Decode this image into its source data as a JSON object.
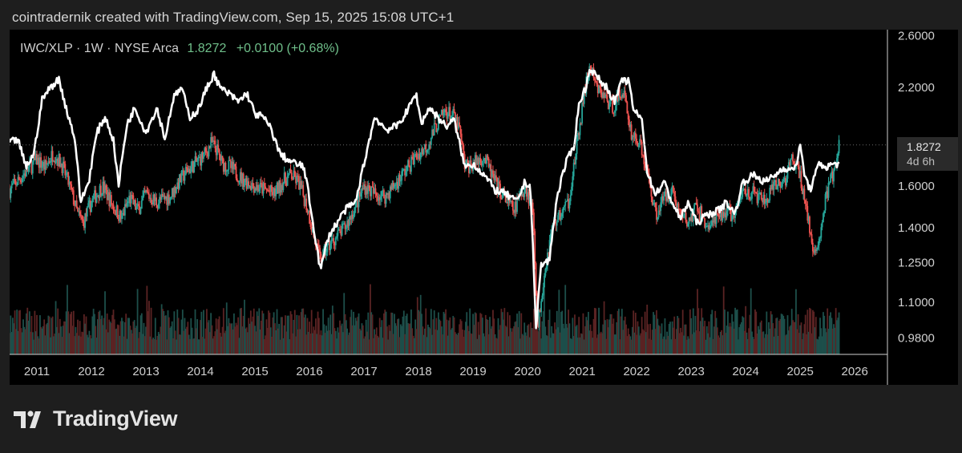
{
  "attribution": "cointradernik created with TradingView.com, Sep 15, 2025 15:08 UTC+1",
  "legend": {
    "symbol": "IWC/XLP · 1W · NYSE Arca",
    "last": "1.8272",
    "change": "+0.0100 (+0.68%)"
  },
  "price_tag": {
    "price": "1.8272",
    "countdown": "4d 6h"
  },
  "brand": {
    "name": "TradingView",
    "icon": "tradingview-logo-icon"
  },
  "colors": {
    "up": "#26a69a",
    "down": "#ef5350",
    "overlay": "#ffffff",
    "volume_up": "#1d4f4a",
    "volume_down": "#5a2323",
    "axis_text": "#d0d0d0",
    "background": "#000000"
  },
  "chart_data": {
    "type": "candlestick",
    "title": "",
    "interval": "1W",
    "y_scale": "log",
    "ylim": [
      0.93,
      2.65
    ],
    "xlim": [
      2010.5,
      2026.6
    ],
    "y_ticks": [
      "2.6000",
      "2.2000",
      "1.6000",
      "1.4000",
      "1.2500",
      "1.1000",
      "0.9800"
    ],
    "x_ticks": [
      "2011",
      "2012",
      "2013",
      "2014",
      "2015",
      "2016",
      "2017",
      "2018",
      "2019",
      "2020",
      "2021",
      "2022",
      "2023",
      "2024",
      "2025",
      "2026"
    ],
    "last_price": 1.8272,
    "series": [
      {
        "type": "candlestick",
        "points": [
          [
            2010.5,
            1.58
          ],
          [
            2010.75,
            1.66
          ],
          [
            2011.0,
            1.74
          ],
          [
            2011.15,
            1.7
          ],
          [
            2011.3,
            1.78
          ],
          [
            2011.45,
            1.72
          ],
          [
            2011.6,
            1.6
          ],
          [
            2011.75,
            1.46
          ],
          [
            2011.85,
            1.42
          ],
          [
            2012.0,
            1.52
          ],
          [
            2012.2,
            1.6
          ],
          [
            2012.4,
            1.5
          ],
          [
            2012.55,
            1.44
          ],
          [
            2012.7,
            1.54
          ],
          [
            2012.85,
            1.48
          ],
          [
            2013.0,
            1.56
          ],
          [
            2013.2,
            1.52
          ],
          [
            2013.45,
            1.55
          ],
          [
            2013.6,
            1.62
          ],
          [
            2013.75,
            1.68
          ],
          [
            2013.9,
            1.72
          ],
          [
            2014.1,
            1.78
          ],
          [
            2014.2,
            1.84
          ],
          [
            2014.3,
            1.8
          ],
          [
            2014.4,
            1.72
          ],
          [
            2014.55,
            1.7
          ],
          [
            2014.75,
            1.64
          ],
          [
            2015.0,
            1.6
          ],
          [
            2015.2,
            1.58
          ],
          [
            2015.35,
            1.56
          ],
          [
            2015.5,
            1.62
          ],
          [
            2015.65,
            1.66
          ],
          [
            2015.8,
            1.62
          ],
          [
            2015.95,
            1.5
          ],
          [
            2016.1,
            1.34
          ],
          [
            2016.2,
            1.26
          ],
          [
            2016.35,
            1.32
          ],
          [
            2016.5,
            1.36
          ],
          [
            2016.65,
            1.4
          ],
          [
            2016.85,
            1.5
          ],
          [
            2017.0,
            1.6
          ],
          [
            2017.2,
            1.56
          ],
          [
            2017.4,
            1.55
          ],
          [
            2017.6,
            1.62
          ],
          [
            2017.8,
            1.7
          ],
          [
            2017.95,
            1.76
          ],
          [
            2018.15,
            1.82
          ],
          [
            2018.35,
            1.96
          ],
          [
            2018.5,
            2.04
          ],
          [
            2018.65,
            2.0
          ],
          [
            2018.75,
            1.92
          ],
          [
            2018.85,
            1.7
          ],
          [
            2019.0,
            1.72
          ],
          [
            2019.2,
            1.76
          ],
          [
            2019.4,
            1.62
          ],
          [
            2019.55,
            1.55
          ],
          [
            2019.75,
            1.48
          ],
          [
            2019.95,
            1.6
          ],
          [
            2020.1,
            1.48
          ],
          [
            2020.18,
            1.0
          ],
          [
            2020.3,
            1.2
          ],
          [
            2020.45,
            1.4
          ],
          [
            2020.6,
            1.46
          ],
          [
            2020.75,
            1.52
          ],
          [
            2020.9,
            1.8
          ],
          [
            2021.05,
            2.18
          ],
          [
            2021.15,
            2.36
          ],
          [
            2021.25,
            2.2
          ],
          [
            2021.4,
            2.14
          ],
          [
            2021.55,
            2.06
          ],
          [
            2021.75,
            2.18
          ],
          [
            2021.9,
            1.9
          ],
          [
            2022.05,
            1.84
          ],
          [
            2022.2,
            1.66
          ],
          [
            2022.35,
            1.46
          ],
          [
            2022.5,
            1.54
          ],
          [
            2022.65,
            1.58
          ],
          [
            2022.8,
            1.46
          ],
          [
            2022.95,
            1.42
          ],
          [
            2023.1,
            1.5
          ],
          [
            2023.3,
            1.4
          ],
          [
            2023.5,
            1.44
          ],
          [
            2023.65,
            1.48
          ],
          [
            2023.8,
            1.45
          ],
          [
            2023.95,
            1.58
          ],
          [
            2024.15,
            1.56
          ],
          [
            2024.35,
            1.52
          ],
          [
            2024.55,
            1.6
          ],
          [
            2024.7,
            1.62
          ],
          [
            2024.85,
            1.74
          ],
          [
            2024.95,
            1.7
          ],
          [
            2025.1,
            1.52
          ],
          [
            2025.25,
            1.26
          ],
          [
            2025.35,
            1.36
          ],
          [
            2025.5,
            1.58
          ],
          [
            2025.65,
            1.7
          ],
          [
            2025.72,
            1.8272
          ]
        ]
      },
      {
        "type": "line",
        "points": [
          [
            2010.5,
            1.84
          ],
          [
            2010.65,
            1.86
          ],
          [
            2010.8,
            1.7
          ],
          [
            2010.95,
            1.78
          ],
          [
            2011.1,
            2.12
          ],
          [
            2011.25,
            2.2
          ],
          [
            2011.4,
            2.26
          ],
          [
            2011.55,
            2.04
          ],
          [
            2011.7,
            1.86
          ],
          [
            2011.8,
            1.52
          ],
          [
            2011.95,
            1.62
          ],
          [
            2012.1,
            1.9
          ],
          [
            2012.25,
            2.0
          ],
          [
            2012.4,
            1.86
          ],
          [
            2012.5,
            1.6
          ],
          [
            2012.65,
            1.95
          ],
          [
            2012.8,
            2.06
          ],
          [
            2013.0,
            1.9
          ],
          [
            2013.2,
            2.06
          ],
          [
            2013.35,
            1.86
          ],
          [
            2013.5,
            2.12
          ],
          [
            2013.65,
            2.2
          ],
          [
            2013.8,
            2.0
          ],
          [
            2013.95,
            2.04
          ],
          [
            2014.1,
            2.18
          ],
          [
            2014.25,
            2.3
          ],
          [
            2014.35,
            2.2
          ],
          [
            2014.5,
            2.16
          ],
          [
            2014.7,
            2.1
          ],
          [
            2014.85,
            2.16
          ],
          [
            2015.0,
            2.02
          ],
          [
            2015.15,
            2.0
          ],
          [
            2015.3,
            1.92
          ],
          [
            2015.45,
            1.78
          ],
          [
            2015.6,
            1.74
          ],
          [
            2015.75,
            1.72
          ],
          [
            2015.9,
            1.7
          ],
          [
            2016.05,
            1.44
          ],
          [
            2016.2,
            1.22
          ],
          [
            2016.35,
            1.36
          ],
          [
            2016.5,
            1.42
          ],
          [
            2016.65,
            1.48
          ],
          [
            2016.85,
            1.52
          ],
          [
            2017.0,
            1.72
          ],
          [
            2017.2,
            2.0
          ],
          [
            2017.4,
            1.92
          ],
          [
            2017.6,
            1.94
          ],
          [
            2017.8,
            2.04
          ],
          [
            2017.95,
            2.16
          ],
          [
            2018.05,
            1.96
          ],
          [
            2018.2,
            2.06
          ],
          [
            2018.35,
            2.0
          ],
          [
            2018.5,
            1.94
          ],
          [
            2018.65,
            1.98
          ],
          [
            2018.85,
            1.7
          ],
          [
            2019.0,
            1.72
          ],
          [
            2019.2,
            1.66
          ],
          [
            2019.4,
            1.58
          ],
          [
            2019.6,
            1.56
          ],
          [
            2019.8,
            1.52
          ],
          [
            2019.95,
            1.62
          ],
          [
            2020.05,
            1.6
          ],
          [
            2020.15,
            1.0
          ],
          [
            2020.25,
            1.24
          ],
          [
            2020.4,
            1.26
          ],
          [
            2020.55,
            1.56
          ],
          [
            2020.7,
            1.72
          ],
          [
            2020.85,
            1.82
          ],
          [
            2020.95,
            2.1
          ],
          [
            2021.05,
            2.18
          ],
          [
            2021.15,
            2.34
          ],
          [
            2021.3,
            2.26
          ],
          [
            2021.45,
            2.2
          ],
          [
            2021.6,
            2.1
          ],
          [
            2021.75,
            2.26
          ],
          [
            2021.85,
            2.24
          ],
          [
            2021.95,
            2.04
          ],
          [
            2022.1,
            1.98
          ],
          [
            2022.2,
            1.66
          ],
          [
            2022.35,
            1.56
          ],
          [
            2022.5,
            1.62
          ],
          [
            2022.65,
            1.52
          ],
          [
            2022.8,
            1.44
          ],
          [
            2022.95,
            1.52
          ],
          [
            2023.1,
            1.42
          ],
          [
            2023.3,
            1.46
          ],
          [
            2023.5,
            1.48
          ],
          [
            2023.65,
            1.52
          ],
          [
            2023.8,
            1.46
          ],
          [
            2023.95,
            1.62
          ],
          [
            2024.15,
            1.66
          ],
          [
            2024.35,
            1.62
          ],
          [
            2024.55,
            1.66
          ],
          [
            2024.7,
            1.7
          ],
          [
            2024.85,
            1.68
          ],
          [
            2024.95,
            1.74
          ],
          [
            2025.0,
            1.82
          ],
          [
            2025.08,
            1.66
          ],
          [
            2025.18,
            1.58
          ],
          [
            2025.35,
            1.72
          ],
          [
            2025.5,
            1.7
          ],
          [
            2025.6,
            1.72
          ],
          [
            2025.72,
            1.72
          ]
        ]
      }
    ],
    "volume": {
      "relative_level": 0.18
    }
  }
}
